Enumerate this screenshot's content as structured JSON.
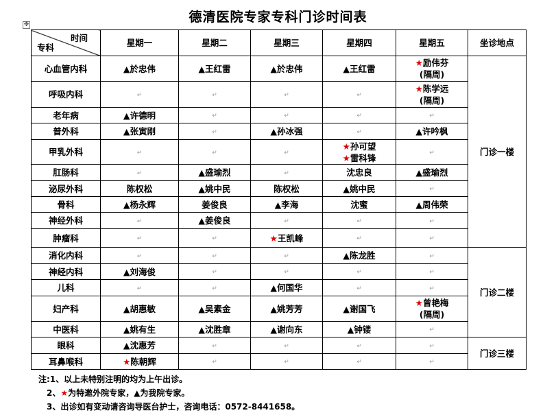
{
  "title": "德清医院专家专科门诊时间表",
  "header": {
    "time_label": "时间",
    "dept_label": "专科",
    "days": [
      "星期一",
      "星期二",
      "星期三",
      "星期四",
      "星期五"
    ],
    "location_label": "坐诊地点"
  },
  "marks": {
    "tri": "▲",
    "star": "★",
    "star_color": "#e00000"
  },
  "rows": [
    {
      "dept": "心血管内科",
      "cells": [
        [
          {
            "m": "tri",
            "n": "於忠伟"
          }
        ],
        [
          {
            "m": "tri",
            "n": "王红雷"
          }
        ],
        [
          {
            "m": "tri",
            "n": "於忠伟"
          }
        ],
        [
          {
            "m": "tri",
            "n": "王红雷"
          }
        ],
        [
          {
            "m": "star",
            "n": "励伟芬"
          },
          {
            "m": "",
            "n": "(隔周)"
          }
        ]
      ]
    },
    {
      "dept": "呼吸内科",
      "cells": [
        [],
        [],
        [],
        [],
        [
          {
            "m": "star",
            "n": "陈学远"
          },
          {
            "m": "",
            "n": "(隔周)"
          }
        ]
      ]
    },
    {
      "dept": "老年病",
      "cells": [
        [
          {
            "m": "tri",
            "n": "许德明"
          }
        ],
        [],
        [],
        [],
        []
      ]
    },
    {
      "dept": "普外科",
      "cells": [
        [
          {
            "m": "tri",
            "n": "张寅刚"
          }
        ],
        [],
        [
          {
            "m": "tri",
            "n": "孙冰强"
          }
        ],
        [],
        [
          {
            "m": "tri",
            "n": "许吟枫"
          }
        ]
      ]
    },
    {
      "dept": "甲乳外科",
      "cells": [
        [],
        [],
        [],
        [
          {
            "m": "star",
            "n": "孙可望"
          },
          {
            "m": "star",
            "n": "雷科锋"
          }
        ],
        []
      ]
    },
    {
      "dept": "肛肠科",
      "cells": [
        [],
        [
          {
            "m": "tri",
            "n": "盛瑜烈"
          }
        ],
        [],
        [
          {
            "m": "",
            "n": "沈忠良"
          }
        ],
        [
          {
            "m": "tri",
            "n": "盛瑜烈"
          }
        ]
      ]
    },
    {
      "dept": "泌尿外科",
      "cells": [
        [
          {
            "m": "",
            "n": "陈权松"
          }
        ],
        [
          {
            "m": "tri",
            "n": "姚中民"
          }
        ],
        [
          {
            "m": "",
            "n": "陈权松"
          }
        ],
        [
          {
            "m": "tri",
            "n": "姚中民"
          }
        ],
        []
      ]
    },
    {
      "dept": "骨科",
      "cells": [
        [
          {
            "m": "tri",
            "n": "杨永辉"
          }
        ],
        [
          {
            "m": "",
            "n": "姜俊良"
          }
        ],
        [
          {
            "m": "tri",
            "n": "李海"
          }
        ],
        [
          {
            "m": "",
            "n": "沈蜜"
          }
        ],
        [
          {
            "m": "tri",
            "n": "周伟荣"
          }
        ]
      ]
    },
    {
      "dept": "神经外科",
      "cells": [
        [],
        [
          {
            "m": "tri",
            "n": "姜俊良"
          }
        ],
        [],
        [],
        []
      ]
    },
    {
      "dept": "肿瘤科",
      "cells": [
        [],
        [],
        [
          {
            "m": "star",
            "n": "王凯峰"
          }
        ],
        [],
        []
      ]
    },
    {
      "dept": "消化内科",
      "cells": [
        [],
        [],
        [],
        [
          {
            "m": "tri",
            "n": "陈龙胜"
          }
        ],
        []
      ]
    },
    {
      "dept": "神经内科",
      "cells": [
        [
          {
            "m": "tri",
            "n": "刘海俊"
          }
        ],
        [],
        [],
        [],
        []
      ]
    },
    {
      "dept": "儿科",
      "cells": [
        [],
        [],
        [
          {
            "m": "tri",
            "n": "何国华"
          }
        ],
        [],
        []
      ]
    },
    {
      "dept": "妇产科",
      "cells": [
        [
          {
            "m": "tri",
            "n": "胡惠敏"
          }
        ],
        [
          {
            "m": "tri",
            "n": "吴素金"
          }
        ],
        [
          {
            "m": "tri",
            "n": "姚芳芳"
          }
        ],
        [
          {
            "m": "tri",
            "n": "谢国飞"
          }
        ],
        [
          {
            "m": "star",
            "n": "曾艳梅"
          },
          {
            "m": "",
            "n": "(隔周)"
          }
        ]
      ]
    },
    {
      "dept": "中医科",
      "cells": [
        [
          {
            "m": "tri",
            "n": "姚有生"
          }
        ],
        [
          {
            "m": "tri",
            "n": "沈胜章"
          }
        ],
        [
          {
            "m": "tri",
            "n": "谢向东"
          }
        ],
        [
          {
            "m": "tri",
            "n": "钟镂"
          }
        ],
        []
      ]
    },
    {
      "dept": "眼科",
      "cells": [
        [
          {
            "m": "tri",
            "n": "沈惠芳"
          }
        ],
        [],
        [],
        [],
        []
      ]
    },
    {
      "dept": "耳鼻喉科",
      "cells": [
        [
          {
            "m": "star",
            "n": "陈朝辉"
          }
        ],
        [],
        [],
        [],
        []
      ]
    }
  ],
  "locations": [
    {
      "label": "门诊一楼",
      "rows": 10
    },
    {
      "label": "门诊二楼",
      "rows": 5
    },
    {
      "label": "门诊三楼",
      "rows": 2
    }
  ],
  "notes": {
    "line1": "注:1、以上未特别注明的均为上午出诊。",
    "line2_prefix": "2、",
    "line2_a": "为特邀外院专家，",
    "line2_b": "为我院专家。",
    "line3": "3、出诊如有变动请咨询导医台护士，咨询电话：0572-8441658。"
  }
}
